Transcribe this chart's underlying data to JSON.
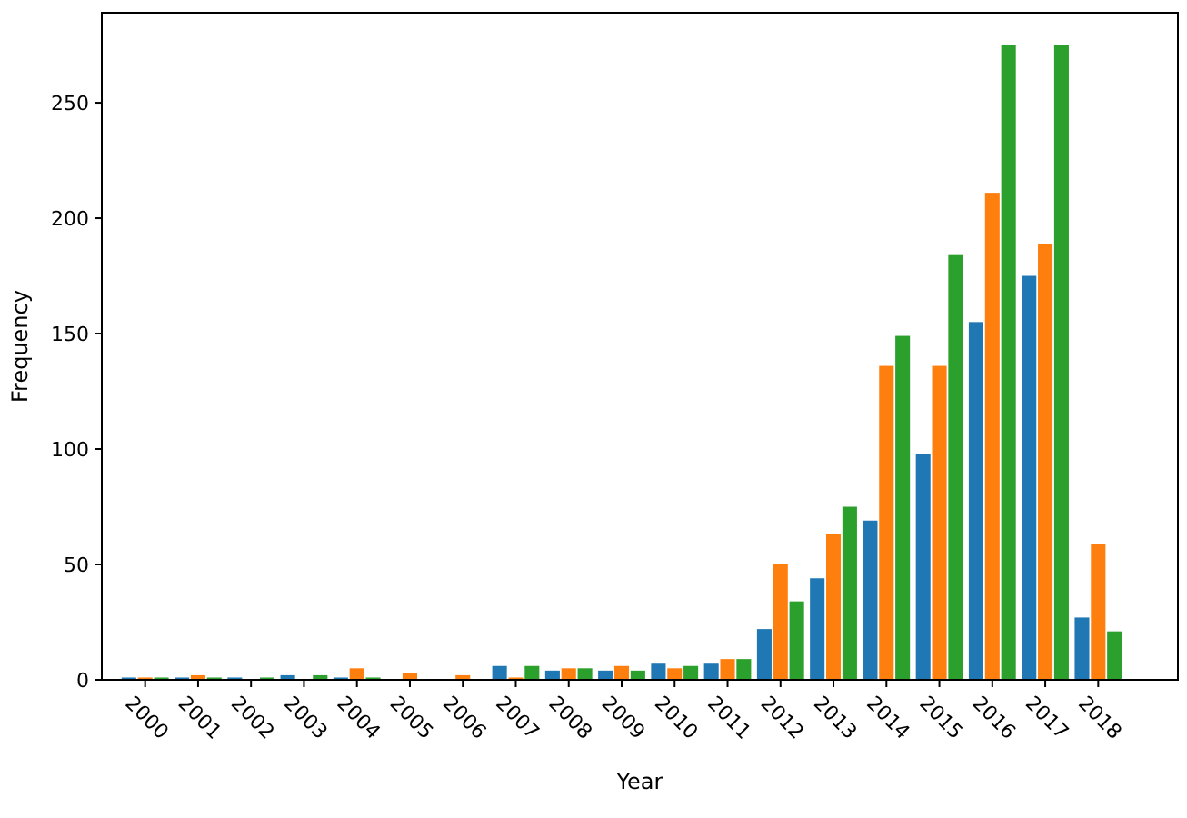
{
  "chart_data": {
    "type": "bar",
    "xlabel": "Year",
    "ylabel": "Frequency",
    "categories": [
      "2000",
      "2001",
      "2002",
      "2003",
      "2004",
      "2005",
      "2006",
      "2007",
      "2008",
      "2009",
      "2010",
      "2011",
      "2012",
      "2013",
      "2014",
      "2015",
      "2016",
      "2017",
      "2018"
    ],
    "series": [
      {
        "color": "#1f77b4",
        "values": [
          1,
          1,
          1,
          2,
          1,
          0,
          0,
          6,
          4,
          4,
          7,
          7,
          22,
          44,
          69,
          98,
          155,
          175,
          27
        ]
      },
      {
        "color": "#ff7f0e",
        "values": [
          1,
          2,
          0,
          0,
          5,
          3,
          2,
          1,
          5,
          6,
          5,
          9,
          50,
          63,
          136,
          136,
          211,
          189,
          59
        ]
      },
      {
        "color": "#2ca02c",
        "values": [
          1,
          1,
          1,
          2,
          1,
          0,
          0,
          6,
          5,
          4,
          6,
          9,
          34,
          75,
          149,
          184,
          275,
          275,
          21
        ]
      }
    ],
    "ylim": [
      0,
      289
    ],
    "yticks": [
      0,
      50,
      100,
      150,
      200,
      250
    ],
    "grid": false
  }
}
